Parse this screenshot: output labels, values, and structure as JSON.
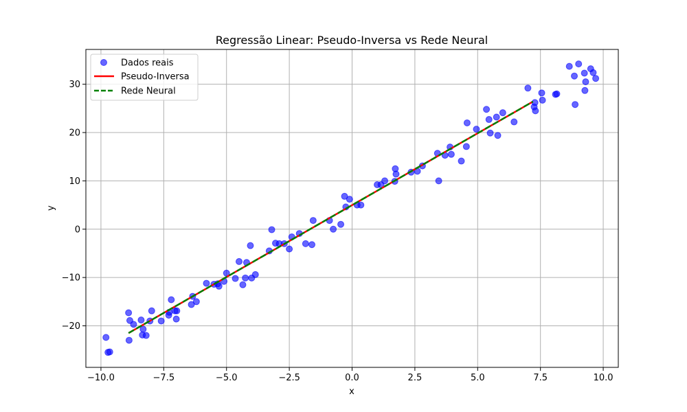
{
  "chart_data": {
    "type": "scatter",
    "title": "Regressão Linear: Pseudo-Inversa vs Rede Neural",
    "xlabel": "x",
    "ylabel": "y",
    "xlim": [
      -10.6,
      10.6
    ],
    "ylim": [
      -28.6,
      37.2
    ],
    "xticks": [
      -10.0,
      -7.5,
      -5.0,
      -2.5,
      0.0,
      2.5,
      5.0,
      7.5,
      10.0
    ],
    "xtick_labels": [
      "−10.0",
      "−7.5",
      "−5.0",
      "−2.5",
      "0.0",
      "2.5",
      "5.0",
      "7.5",
      "10.0"
    ],
    "yticks": [
      -20,
      -10,
      0,
      10,
      20,
      30
    ],
    "ytick_labels": [
      "−20",
      "−10",
      "0",
      "10",
      "20",
      "30"
    ],
    "grid": true,
    "legend": {
      "placement": "top-left",
      "entries": [
        "Dados reais",
        "Pseudo-Inversa",
        "Rede Neural"
      ]
    },
    "series": [
      {
        "name": "Dados reais",
        "kind": "scatter",
        "color": "#0000ff",
        "points": [
          [
            -9.8,
            -22.4
          ],
          [
            -9.72,
            -25.5
          ],
          [
            -9.65,
            -25.4
          ],
          [
            -8.9,
            -17.3
          ],
          [
            -8.88,
            -23.0
          ],
          [
            -8.85,
            -18.9
          ],
          [
            -8.7,
            -19.7
          ],
          [
            -8.4,
            -18.8
          ],
          [
            -8.35,
            -21.9
          ],
          [
            -8.32,
            -20.7
          ],
          [
            -8.2,
            -22.0
          ],
          [
            -8.05,
            -19.0
          ],
          [
            -7.98,
            -16.9
          ],
          [
            -7.6,
            -19.0
          ],
          [
            -7.3,
            -17.8
          ],
          [
            -7.28,
            -17.2
          ],
          [
            -7.2,
            -14.6
          ],
          [
            -7.05,
            -16.9
          ],
          [
            -7.0,
            -18.6
          ],
          [
            -6.98,
            -16.9
          ],
          [
            -6.4,
            -15.6
          ],
          [
            -6.35,
            -13.9
          ],
          [
            -6.2,
            -15.0
          ],
          [
            -5.8,
            -11.2
          ],
          [
            -5.5,
            -11.4
          ],
          [
            -5.35,
            -11.3
          ],
          [
            -5.3,
            -11.8
          ],
          [
            -5.1,
            -10.8
          ],
          [
            -5.0,
            -9.1
          ],
          [
            -4.65,
            -10.2
          ],
          [
            -4.5,
            -6.7
          ],
          [
            -4.35,
            -11.5
          ],
          [
            -4.25,
            -10.1
          ],
          [
            -4.2,
            -6.9
          ],
          [
            -4.05,
            -3.4
          ],
          [
            -4.0,
            -10.1
          ],
          [
            -3.85,
            -9.4
          ],
          [
            -3.3,
            -4.5
          ],
          [
            -3.2,
            -0.1
          ],
          [
            -3.05,
            -2.9
          ],
          [
            -2.9,
            -3.0
          ],
          [
            -2.7,
            -3.0
          ],
          [
            -2.5,
            -4.1
          ],
          [
            -2.4,
            -1.6
          ],
          [
            -2.1,
            -0.9
          ],
          [
            -1.85,
            -3.0
          ],
          [
            -1.6,
            -3.2
          ],
          [
            -1.55,
            1.8
          ],
          [
            -0.9,
            1.8
          ],
          [
            -0.75,
            0.0
          ],
          [
            -0.45,
            1.0
          ],
          [
            -0.3,
            6.8
          ],
          [
            -0.25,
            4.6
          ],
          [
            -0.1,
            6.2
          ],
          [
            0.2,
            5.0
          ],
          [
            0.35,
            5.0
          ],
          [
            1.0,
            9.2
          ],
          [
            1.15,
            9.2
          ],
          [
            1.3,
            10.0
          ],
          [
            1.7,
            9.9
          ],
          [
            1.72,
            12.5
          ],
          [
            1.75,
            11.4
          ],
          [
            2.35,
            11.8
          ],
          [
            2.6,
            12.0
          ],
          [
            2.8,
            13.1
          ],
          [
            3.4,
            15.7
          ],
          [
            3.45,
            10.0
          ],
          [
            3.7,
            15.3
          ],
          [
            3.9,
            17.0
          ],
          [
            3.95,
            15.5
          ],
          [
            4.35,
            14.1
          ],
          [
            4.55,
            17.1
          ],
          [
            4.58,
            22.0
          ],
          [
            4.95,
            20.7
          ],
          [
            5.35,
            24.8
          ],
          [
            5.45,
            22.7
          ],
          [
            5.5,
            19.9
          ],
          [
            5.75,
            23.2
          ],
          [
            5.8,
            19.4
          ],
          [
            6.0,
            24.1
          ],
          [
            6.45,
            22.2
          ],
          [
            7.0,
            29.2
          ],
          [
            7.25,
            25.3
          ],
          [
            7.28,
            26.2
          ],
          [
            7.3,
            24.5
          ],
          [
            7.55,
            28.2
          ],
          [
            7.58,
            26.7
          ],
          [
            8.1,
            27.9
          ],
          [
            8.15,
            28.0
          ],
          [
            8.65,
            33.7
          ],
          [
            8.85,
            31.7
          ],
          [
            8.88,
            25.8
          ],
          [
            9.02,
            34.2
          ],
          [
            9.25,
            32.3
          ],
          [
            9.27,
            28.7
          ],
          [
            9.3,
            30.5
          ],
          [
            9.5,
            33.2
          ],
          [
            9.6,
            32.4
          ],
          [
            9.7,
            31.2
          ]
        ]
      },
      {
        "name": "Pseudo-Inversa",
        "kind": "line",
        "color": "#ff0000",
        "x": [
          -8.9,
          7.2
        ],
        "y": [
          -21.5,
          26.4
        ]
      },
      {
        "name": "Rede Neural",
        "kind": "dashed-line",
        "color": "#008000",
        "x": [
          -8.9,
          7.2
        ],
        "y": [
          -21.5,
          26.4
        ]
      }
    ]
  }
}
